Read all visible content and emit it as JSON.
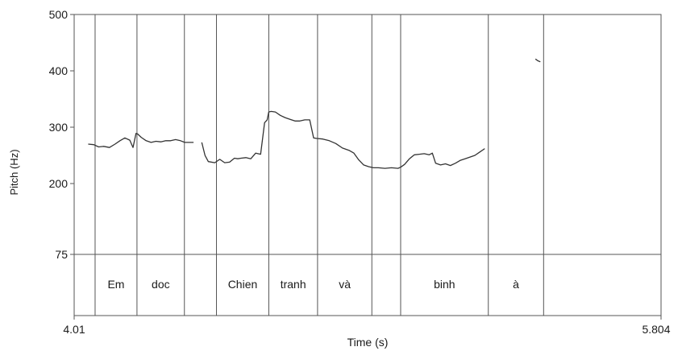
{
  "chart_data": {
    "type": "line",
    "title": "",
    "xlabel": "Time (s)",
    "ylabel": "Pitch (Hz)",
    "xlim": [
      4.01,
      5.804
    ],
    "ylim": [
      75,
      500
    ],
    "x_tick_labels": [
      "4.01",
      "5.804"
    ],
    "y_ticks": [
      75,
      200,
      300,
      400,
      500
    ],
    "y_tick_labels": [
      "75",
      "200",
      "300",
      "400",
      "500"
    ],
    "grid": false,
    "line_color": "#333333",
    "segment_boundaries": [
      4.074,
      4.202,
      4.347,
      4.445,
      4.605,
      4.754,
      4.92,
      5.008,
      5.276,
      5.445
    ],
    "word_intervals": [
      {
        "label": "Em",
        "start": 4.074,
        "end": 4.202
      },
      {
        "label": "doc",
        "start": 4.202,
        "end": 4.347
      },
      {
        "label": "Chien",
        "start": 4.445,
        "end": 4.605
      },
      {
        "label": "tranh",
        "start": 4.605,
        "end": 4.754
      },
      {
        "label": "và",
        "start": 4.754,
        "end": 4.92
      },
      {
        "label": "binh",
        "start": 5.008,
        "end": 5.276
      },
      {
        "label": "à",
        "start": 5.276,
        "end": 5.445
      }
    ],
    "series": [
      {
        "segments": [
          {
            "x": [
              4.053,
              4.07,
              4.085,
              4.1,
              4.118,
              4.135,
              4.15,
              4.165,
              4.18,
              4.19,
              4.199,
              4.204,
              4.215,
              4.23,
              4.245,
              4.26,
              4.275,
              4.29,
              4.305,
              4.32,
              4.335,
              4.348,
              4.36,
              4.375
            ],
            "y": [
              270,
              269,
              265,
              266,
              264,
              270,
              276,
              281,
              277,
              264,
              289,
              288,
              282,
              276,
              273,
              275,
              274,
              276,
              276,
              278,
              276,
              273,
              273,
              273
            ]
          },
          {
            "x": [
              4.4,
              4.41,
              4.42,
              4.44,
              4.455,
              4.47,
              4.485,
              4.5,
              4.51,
              4.52,
              4.535,
              4.55,
              4.565,
              4.58,
              4.592,
              4.6,
              4.605,
              4.612,
              4.625,
              4.64,
              4.655,
              4.67,
              4.685,
              4.7,
              4.715,
              4.73,
              4.742,
              4.752
            ],
            "y": [
              273,
              250,
              239,
              237,
              243,
              237,
              238,
              245,
              244,
              245,
              246,
              244,
              254,
              252,
              308,
              313,
              327,
              328,
              327,
              321,
              317,
              314,
              311,
              311,
              313,
              313,
              281,
              280
            ]
          },
          {
            "x": [
              4.752,
              4.77,
              4.79,
              4.81,
              4.83,
              4.85,
              4.865,
              4.88,
              4.895,
              4.91,
              4.925,
              4.94,
              4.96,
              4.98,
              5.0,
              5.008,
              5.02,
              5.035,
              5.05,
              5.065,
              5.08,
              5.095,
              5.105,
              5.115,
              5.13,
              5.145,
              5.16,
              5.175,
              5.19,
              5.205,
              5.22,
              5.235,
              5.25,
              5.265
            ],
            "y": [
              280,
              279,
              276,
              271,
              263,
              259,
              254,
              242,
              233,
              230,
              228,
              228,
              227,
              228,
              227,
              229,
              234,
              244,
              251,
              252,
              253,
              251,
              254,
              236,
              233,
              235,
              232,
              236,
              241,
              244,
              247,
              250,
              256,
              262
            ]
          },
          {
            "x": [
              5.42,
              5.427,
              5.435
            ],
            "y": [
              421,
              418,
              416
            ]
          }
        ]
      }
    ]
  }
}
